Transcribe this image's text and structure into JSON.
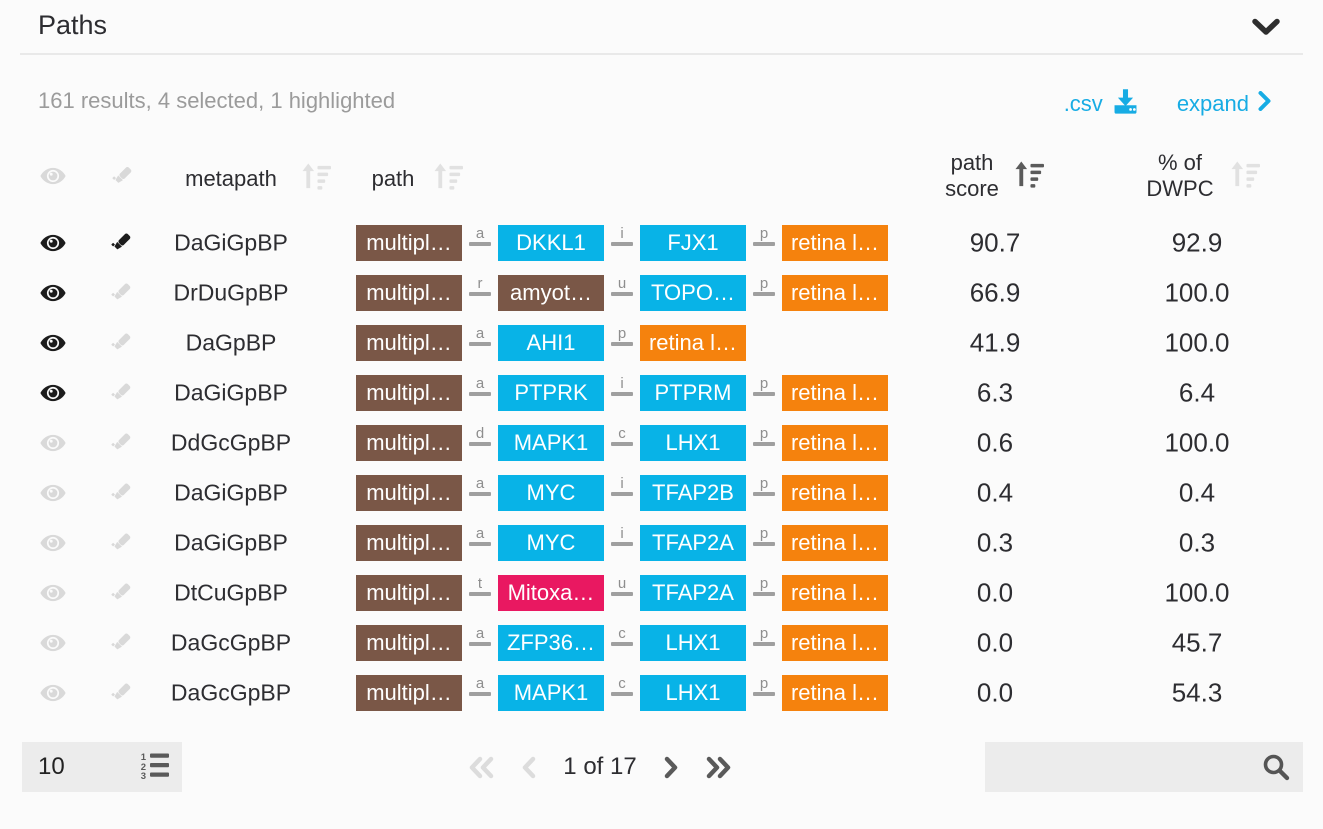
{
  "panel": {
    "title": "Paths"
  },
  "toolbar": {
    "results_summary": "161 results, 4 selected, 1 highlighted",
    "csv_label": ".csv",
    "expand_label": "expand"
  },
  "colors": {
    "link_blue": "#17ace4",
    "nodes": {
      "disease": "#7a5747",
      "gene": "#08b3e7",
      "bioprocess": "#f5820d",
      "compound": "#e91861"
    },
    "sort_active": "#5b5b5b",
    "sort_inactive": "#e1e1e1"
  },
  "icons": {
    "collapse": "chevron-down-icon",
    "csv": "download-icon",
    "expand": "chevron-right-icon",
    "select_column": "eye-icon",
    "highlight_column": "highlighter-icon",
    "sort": "sort-amount-up-icon",
    "page_size": "ordered-list-icon",
    "first_page": "double-chevron-left-icon",
    "prev_page": "chevron-left-icon",
    "next_page": "chevron-right-icon",
    "last_page": "double-chevron-right-icon",
    "search": "magnifier-icon"
  },
  "table": {
    "headers": {
      "metapath": "metapath",
      "path": "path",
      "score_line1": "path",
      "score_line2": "score",
      "dwpc_line1": "% of",
      "dwpc_line2": "DWPC"
    },
    "rows": [
      {
        "selected": true,
        "highlighted": true,
        "metapath": "DaGiGpBP",
        "score": "90.7",
        "dwpc": "92.9",
        "path": [
          {
            "type": "node",
            "label": "multipl…",
            "kind": "disease"
          },
          {
            "type": "edge",
            "label": "a"
          },
          {
            "type": "node",
            "label": "DKKL1",
            "kind": "gene"
          },
          {
            "type": "edge",
            "label": "i"
          },
          {
            "type": "node",
            "label": "FJX1",
            "kind": "gene"
          },
          {
            "type": "edge",
            "label": "p"
          },
          {
            "type": "node",
            "label": "retina l…",
            "kind": "bioprocess"
          }
        ]
      },
      {
        "selected": true,
        "highlighted": false,
        "metapath": "DrDuGpBP",
        "score": "66.9",
        "dwpc": "100.0",
        "path": [
          {
            "type": "node",
            "label": "multipl…",
            "kind": "disease"
          },
          {
            "type": "edge",
            "label": "r"
          },
          {
            "type": "node",
            "label": "amyot…",
            "kind": "disease"
          },
          {
            "type": "edge",
            "label": "u"
          },
          {
            "type": "node",
            "label": "TOPO…",
            "kind": "gene"
          },
          {
            "type": "edge",
            "label": "p"
          },
          {
            "type": "node",
            "label": "retina l…",
            "kind": "bioprocess"
          }
        ]
      },
      {
        "selected": true,
        "highlighted": false,
        "metapath": "DaGpBP",
        "score": "41.9",
        "dwpc": "100.0",
        "path": [
          {
            "type": "node",
            "label": "multipl…",
            "kind": "disease"
          },
          {
            "type": "edge",
            "label": "a"
          },
          {
            "type": "node",
            "label": "AHI1",
            "kind": "gene"
          },
          {
            "type": "edge",
            "label": "p"
          },
          {
            "type": "node",
            "label": "retina l…",
            "kind": "bioprocess"
          }
        ]
      },
      {
        "selected": true,
        "highlighted": false,
        "metapath": "DaGiGpBP",
        "score": "6.3",
        "dwpc": "6.4",
        "path": [
          {
            "type": "node",
            "label": "multipl…",
            "kind": "disease"
          },
          {
            "type": "edge",
            "label": "a"
          },
          {
            "type": "node",
            "label": "PTPRK",
            "kind": "gene"
          },
          {
            "type": "edge",
            "label": "i"
          },
          {
            "type": "node",
            "label": "PTPRM",
            "kind": "gene"
          },
          {
            "type": "edge",
            "label": "p"
          },
          {
            "type": "node",
            "label": "retina l…",
            "kind": "bioprocess"
          }
        ]
      },
      {
        "selected": false,
        "highlighted": false,
        "metapath": "DdGcGpBP",
        "score": "0.6",
        "dwpc": "100.0",
        "path": [
          {
            "type": "node",
            "label": "multipl…",
            "kind": "disease"
          },
          {
            "type": "edge",
            "label": "d"
          },
          {
            "type": "node",
            "label": "MAPK1",
            "kind": "gene"
          },
          {
            "type": "edge",
            "label": "c"
          },
          {
            "type": "node",
            "label": "LHX1",
            "kind": "gene"
          },
          {
            "type": "edge",
            "label": "p"
          },
          {
            "type": "node",
            "label": "retina l…",
            "kind": "bioprocess"
          }
        ]
      },
      {
        "selected": false,
        "highlighted": false,
        "metapath": "DaGiGpBP",
        "score": "0.4",
        "dwpc": "0.4",
        "path": [
          {
            "type": "node",
            "label": "multipl…",
            "kind": "disease"
          },
          {
            "type": "edge",
            "label": "a"
          },
          {
            "type": "node",
            "label": "MYC",
            "kind": "gene"
          },
          {
            "type": "edge",
            "label": "i"
          },
          {
            "type": "node",
            "label": "TFAP2B",
            "kind": "gene"
          },
          {
            "type": "edge",
            "label": "p"
          },
          {
            "type": "node",
            "label": "retina l…",
            "kind": "bioprocess"
          }
        ]
      },
      {
        "selected": false,
        "highlighted": false,
        "metapath": "DaGiGpBP",
        "score": "0.3",
        "dwpc": "0.3",
        "path": [
          {
            "type": "node",
            "label": "multipl…",
            "kind": "disease"
          },
          {
            "type": "edge",
            "label": "a"
          },
          {
            "type": "node",
            "label": "MYC",
            "kind": "gene"
          },
          {
            "type": "edge",
            "label": "i"
          },
          {
            "type": "node",
            "label": "TFAP2A",
            "kind": "gene"
          },
          {
            "type": "edge",
            "label": "p"
          },
          {
            "type": "node",
            "label": "retina l…",
            "kind": "bioprocess"
          }
        ]
      },
      {
        "selected": false,
        "highlighted": false,
        "metapath": "DtCuGpBP",
        "score": "0.0",
        "dwpc": "100.0",
        "path": [
          {
            "type": "node",
            "label": "multipl…",
            "kind": "disease"
          },
          {
            "type": "edge",
            "label": "t"
          },
          {
            "type": "node",
            "label": "Mitoxa…",
            "kind": "compound"
          },
          {
            "type": "edge",
            "label": "u"
          },
          {
            "type": "node",
            "label": "TFAP2A",
            "kind": "gene"
          },
          {
            "type": "edge",
            "label": "p"
          },
          {
            "type": "node",
            "label": "retina l…",
            "kind": "bioprocess"
          }
        ]
      },
      {
        "selected": false,
        "highlighted": false,
        "metapath": "DaGcGpBP",
        "score": "0.0",
        "dwpc": "45.7",
        "path": [
          {
            "type": "node",
            "label": "multipl…",
            "kind": "disease"
          },
          {
            "type": "edge",
            "label": "a"
          },
          {
            "type": "node",
            "label": "ZFP36…",
            "kind": "gene"
          },
          {
            "type": "edge",
            "label": "c"
          },
          {
            "type": "node",
            "label": "LHX1",
            "kind": "gene"
          },
          {
            "type": "edge",
            "label": "p"
          },
          {
            "type": "node",
            "label": "retina l…",
            "kind": "bioprocess"
          }
        ]
      },
      {
        "selected": false,
        "highlighted": false,
        "metapath": "DaGcGpBP",
        "score": "0.0",
        "dwpc": "54.3",
        "path": [
          {
            "type": "node",
            "label": "multipl…",
            "kind": "disease"
          },
          {
            "type": "edge",
            "label": "a"
          },
          {
            "type": "node",
            "label": "MAPK1",
            "kind": "gene"
          },
          {
            "type": "edge",
            "label": "c"
          },
          {
            "type": "node",
            "label": "LHX1",
            "kind": "gene"
          },
          {
            "type": "edge",
            "label": "p"
          },
          {
            "type": "node",
            "label": "retina l…",
            "kind": "bioprocess"
          }
        ]
      }
    ]
  },
  "footer": {
    "page_size": "10",
    "page_status": "1 of 17",
    "search_value": ""
  }
}
